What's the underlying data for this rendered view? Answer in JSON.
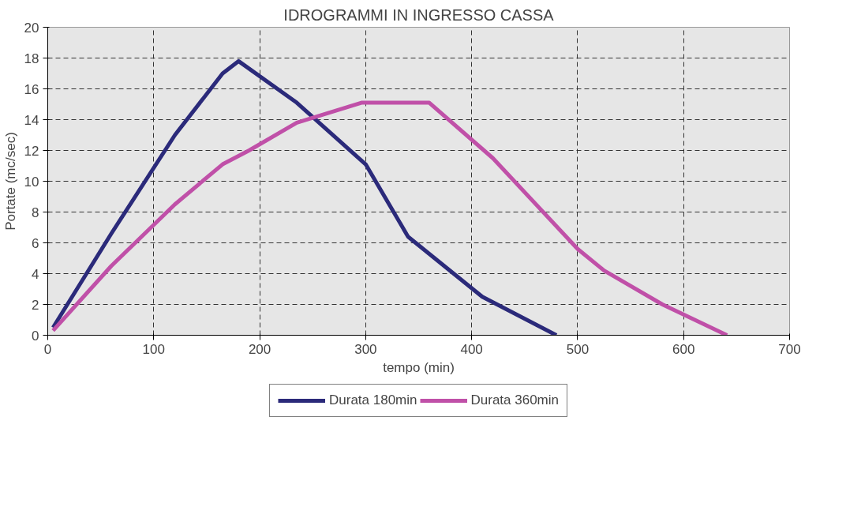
{
  "chart_data": {
    "type": "line",
    "title": "IDROGRAMMI IN INGRESSO CASSA",
    "xlabel": "tempo (min)",
    "ylabel": "Portate (mc/sec)",
    "xlim": [
      0,
      700
    ],
    "xticks": [
      0,
      100,
      200,
      300,
      400,
      500,
      600,
      700
    ],
    "ylim": [
      0,
      20
    ],
    "yticks": [
      0,
      2,
      4,
      6,
      8,
      10,
      12,
      14,
      16,
      18,
      20
    ],
    "grid": true,
    "legend": "bottom",
    "line_style": "solid",
    "series": [
      {
        "name": "Durata 180min",
        "color": "#2b2a7a",
        "x": [
          5,
          60,
          120,
          165,
          180,
          235,
          300,
          340,
          410,
          480
        ],
        "values": [
          0.5,
          6.6,
          13.0,
          17.0,
          17.8,
          15.1,
          11.1,
          6.4,
          2.5,
          0
        ]
      },
      {
        "name": "Durata 360min",
        "color": "#c050a8",
        "x": [
          5,
          60,
          120,
          165,
          190,
          235,
          296,
          360,
          420,
          500,
          525,
          580,
          641
        ],
        "values": [
          0.3,
          4.5,
          8.5,
          11.1,
          12.0,
          13.8,
          15.1,
          15.1,
          11.5,
          5.6,
          4.2,
          2.0,
          0
        ]
      }
    ]
  }
}
